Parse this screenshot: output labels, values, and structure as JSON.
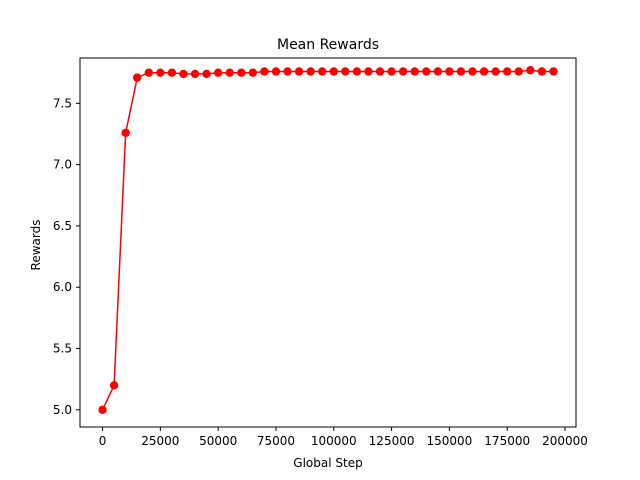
{
  "chart_data": {
    "type": "line",
    "title": "Mean Rewards",
    "xlabel": "Global Step",
    "ylabel": "Rewards",
    "xlim": [
      -9750,
      204750
    ],
    "ylim": [
      4.86,
      7.87
    ],
    "xticks": [
      0,
      25000,
      50000,
      75000,
      100000,
      125000,
      150000,
      175000,
      200000
    ],
    "yticks": [
      5.0,
      5.5,
      6.0,
      6.5,
      7.0,
      7.5
    ],
    "ytick_labels": [
      "5.0",
      "5.5",
      "6.0",
      "6.5",
      "7.0",
      "7.5"
    ],
    "grid": false,
    "legend": false,
    "series": [
      {
        "color": "#ff0000",
        "marker": "circle",
        "x": [
          0,
          5000,
          10000,
          15000,
          20000,
          25000,
          30000,
          35000,
          40000,
          45000,
          50000,
          55000,
          60000,
          65000,
          70000,
          75000,
          80000,
          85000,
          90000,
          95000,
          100000,
          105000,
          110000,
          115000,
          120000,
          125000,
          130000,
          135000,
          140000,
          145000,
          150000,
          155000,
          160000,
          165000,
          170000,
          175000,
          180000,
          185000,
          190000,
          195000
        ],
        "y": [
          5.0,
          5.2,
          7.26,
          7.71,
          7.75,
          7.75,
          7.75,
          7.74,
          7.74,
          7.74,
          7.75,
          7.75,
          7.75,
          7.75,
          7.76,
          7.76,
          7.76,
          7.76,
          7.76,
          7.76,
          7.76,
          7.76,
          7.76,
          7.76,
          7.76,
          7.76,
          7.76,
          7.76,
          7.76,
          7.76,
          7.76,
          7.76,
          7.76,
          7.76,
          7.76,
          7.76,
          7.76,
          7.77,
          7.76,
          7.76
        ]
      }
    ]
  }
}
